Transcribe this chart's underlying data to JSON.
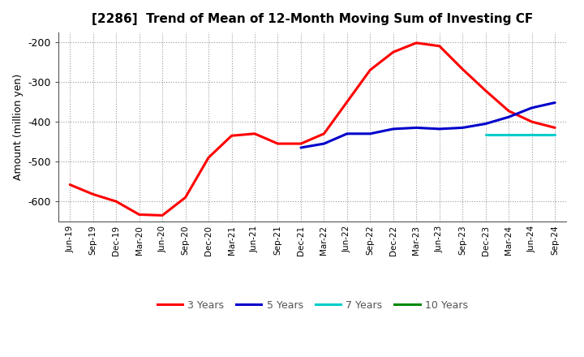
{
  "title": "[2286]  Trend of Mean of 12-Month Moving Sum of Investing CF",
  "ylabel": "Amount (million yen)",
  "ylim": [
    -650,
    -175
  ],
  "yticks": [
    -600,
    -500,
    -400,
    -300,
    -200
  ],
  "background_color": "#ffffff",
  "grid_color": "#999999",
  "x_labels": [
    "Jun-19",
    "Sep-19",
    "Dec-19",
    "Mar-20",
    "Jun-20",
    "Sep-20",
    "Dec-20",
    "Mar-21",
    "Jun-21",
    "Sep-21",
    "Dec-21",
    "Mar-22",
    "Jun-22",
    "Sep-22",
    "Dec-22",
    "Mar-23",
    "Jun-23",
    "Sep-23",
    "Dec-23",
    "Mar-24",
    "Jun-24",
    "Sep-24"
  ],
  "series_3y": [
    -558,
    -582,
    -600,
    -633,
    -635,
    -590,
    -490,
    -435,
    -430,
    -455,
    -455,
    -430,
    -350,
    -270,
    -225,
    -202,
    -210,
    -268,
    -322,
    -373,
    -400,
    -415
  ],
  "series_5y": [
    null,
    null,
    null,
    null,
    null,
    null,
    null,
    null,
    null,
    null,
    -465,
    -455,
    -430,
    -430,
    -418,
    -415,
    -418,
    -415,
    -405,
    -388,
    -365,
    -352
  ],
  "series_7y": [
    null,
    null,
    null,
    null,
    null,
    null,
    null,
    null,
    null,
    null,
    null,
    null,
    null,
    null,
    null,
    null,
    null,
    null,
    -432,
    -432,
    -432,
    -432
  ],
  "series_10y": [
    null,
    null,
    null,
    null,
    null,
    null,
    null,
    null,
    null,
    null,
    null,
    null,
    null,
    null,
    null,
    null,
    null,
    null,
    null,
    null,
    null,
    null
  ],
  "color_3y": "#ff0000",
  "color_5y": "#0000cc",
  "color_7y": "#00cccc",
  "color_10y": "#008800",
  "linewidth": 2.2,
  "legend_labels": [
    "3 Years",
    "5 Years",
    "7 Years",
    "10 Years"
  ],
  "legend_colors": [
    "#ff0000",
    "#0000cc",
    "#00cccc",
    "#008800"
  ]
}
